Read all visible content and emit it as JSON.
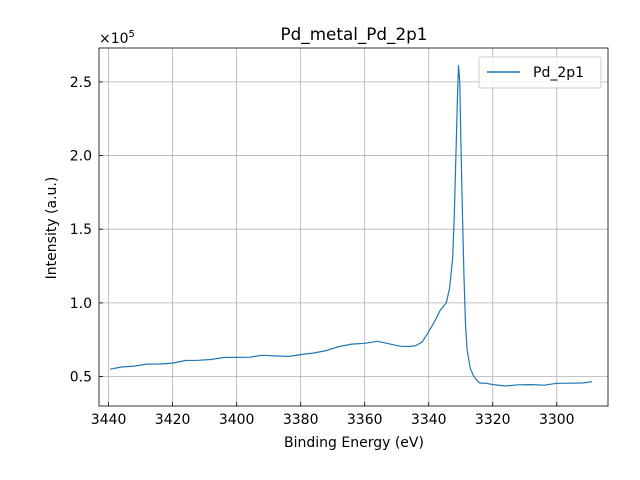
{
  "chart_data": {
    "type": "line",
    "title": "Pd_metal_Pd_2p1",
    "xlabel": "Binding Energy (eV)",
    "ylabel": "Intensity (a.u.)",
    "x_inverted": true,
    "xlim": [
      3443,
      3284
    ],
    "ylim": [
      30000,
      273000
    ],
    "xticks": [
      3440,
      3420,
      3400,
      3380,
      3360,
      3340,
      3320,
      3300
    ],
    "yticks": [
      50000,
      100000,
      150000,
      200000,
      250000
    ],
    "ytick_labels": [
      "0.5",
      "1.0",
      "1.5",
      "2.0",
      "2.5"
    ],
    "y_multiplier_label": "×10",
    "y_multiplier_exponent": "5",
    "grid": true,
    "legend_position": "top-right",
    "series": [
      {
        "name": "Pd_2p1",
        "color": "#1f77b4",
        "x": [
          3439.5,
          3436,
          3432,
          3428,
          3424,
          3420,
          3416,
          3412,
          3408,
          3404,
          3400,
          3396,
          3392,
          3388,
          3384,
          3380,
          3376,
          3372,
          3368,
          3364,
          3360,
          3356,
          3352,
          3349,
          3346,
          3344,
          3342,
          3340,
          3338,
          3336.5,
          3335.5,
          3334.5,
          3333.5,
          3332.5,
          3332,
          3331.5,
          3331,
          3330.7,
          3330.3,
          3330,
          3329.5,
          3329,
          3328.5,
          3328,
          3327,
          3326,
          3325,
          3324,
          3322,
          3320,
          3316,
          3312,
          3308,
          3304,
          3300,
          3296,
          3292,
          3289
        ],
        "y": [
          55000,
          56500,
          57500,
          58000,
          58500,
          59500,
          60500,
          61000,
          62000,
          62500,
          63000,
          63500,
          64000,
          64000,
          64000,
          64500,
          66000,
          68000,
          70000,
          72000,
          73000,
          73500,
          72000,
          71000,
          70000,
          71000,
          74000,
          80000,
          88000,
          95000,
          97000,
          100000,
          110000,
          130000,
          160000,
          200000,
          240000,
          261000,
          250000,
          215000,
          165000,
          120000,
          85000,
          68000,
          56000,
          50000,
          47500,
          46000,
          45000,
          44500,
          44000,
          44000,
          44500,
          44500,
          45000,
          45500,
          46000,
          46500
        ]
      }
    ]
  }
}
